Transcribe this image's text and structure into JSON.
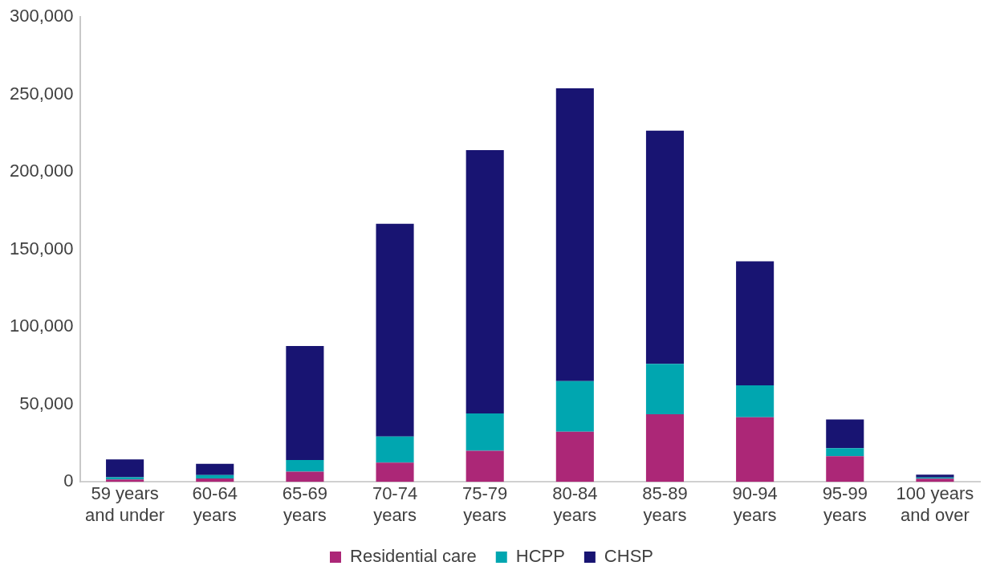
{
  "chart_data": {
    "type": "bar",
    "stacked": true,
    "categories": [
      "59 years and under",
      "60-64 years",
      "65-69 years",
      "70-74 years",
      "75-79 years",
      "80-84 years",
      "85-89 years",
      "90-94 years",
      "95-99 years",
      "100 years and over"
    ],
    "series": [
      {
        "name": "Residential care",
        "color": "#ac2777",
        "values": [
          1500,
          2200,
          6600,
          12400,
          20000,
          32300,
          43600,
          41700,
          16500,
          2000
        ]
      },
      {
        "name": "HCPP",
        "color": "#00a6b0",
        "values": [
          1500,
          2200,
          7500,
          16800,
          24100,
          32700,
          32500,
          20600,
          5300,
          800
        ]
      },
      {
        "name": "CHSP",
        "color": "#181472",
        "values": [
          11500,
          7200,
          73600,
          137300,
          170000,
          189000,
          150600,
          80000,
          18500,
          1800
        ]
      }
    ],
    "ylim": [
      0,
      300000
    ],
    "yticks": [
      0,
      {
        "value": 50000,
        "label": "50,000"
      },
      {
        "value": 100000,
        "label": "100,000"
      },
      {
        "value": 150000,
        "label": "150,000"
      },
      {
        "value": 200000,
        "label": "200,000"
      },
      {
        "value": 250000,
        "label": "250,000"
      },
      {
        "value": 300000,
        "label": "300,000"
      }
    ],
    "grid": false,
    "legend": "bottom"
  }
}
